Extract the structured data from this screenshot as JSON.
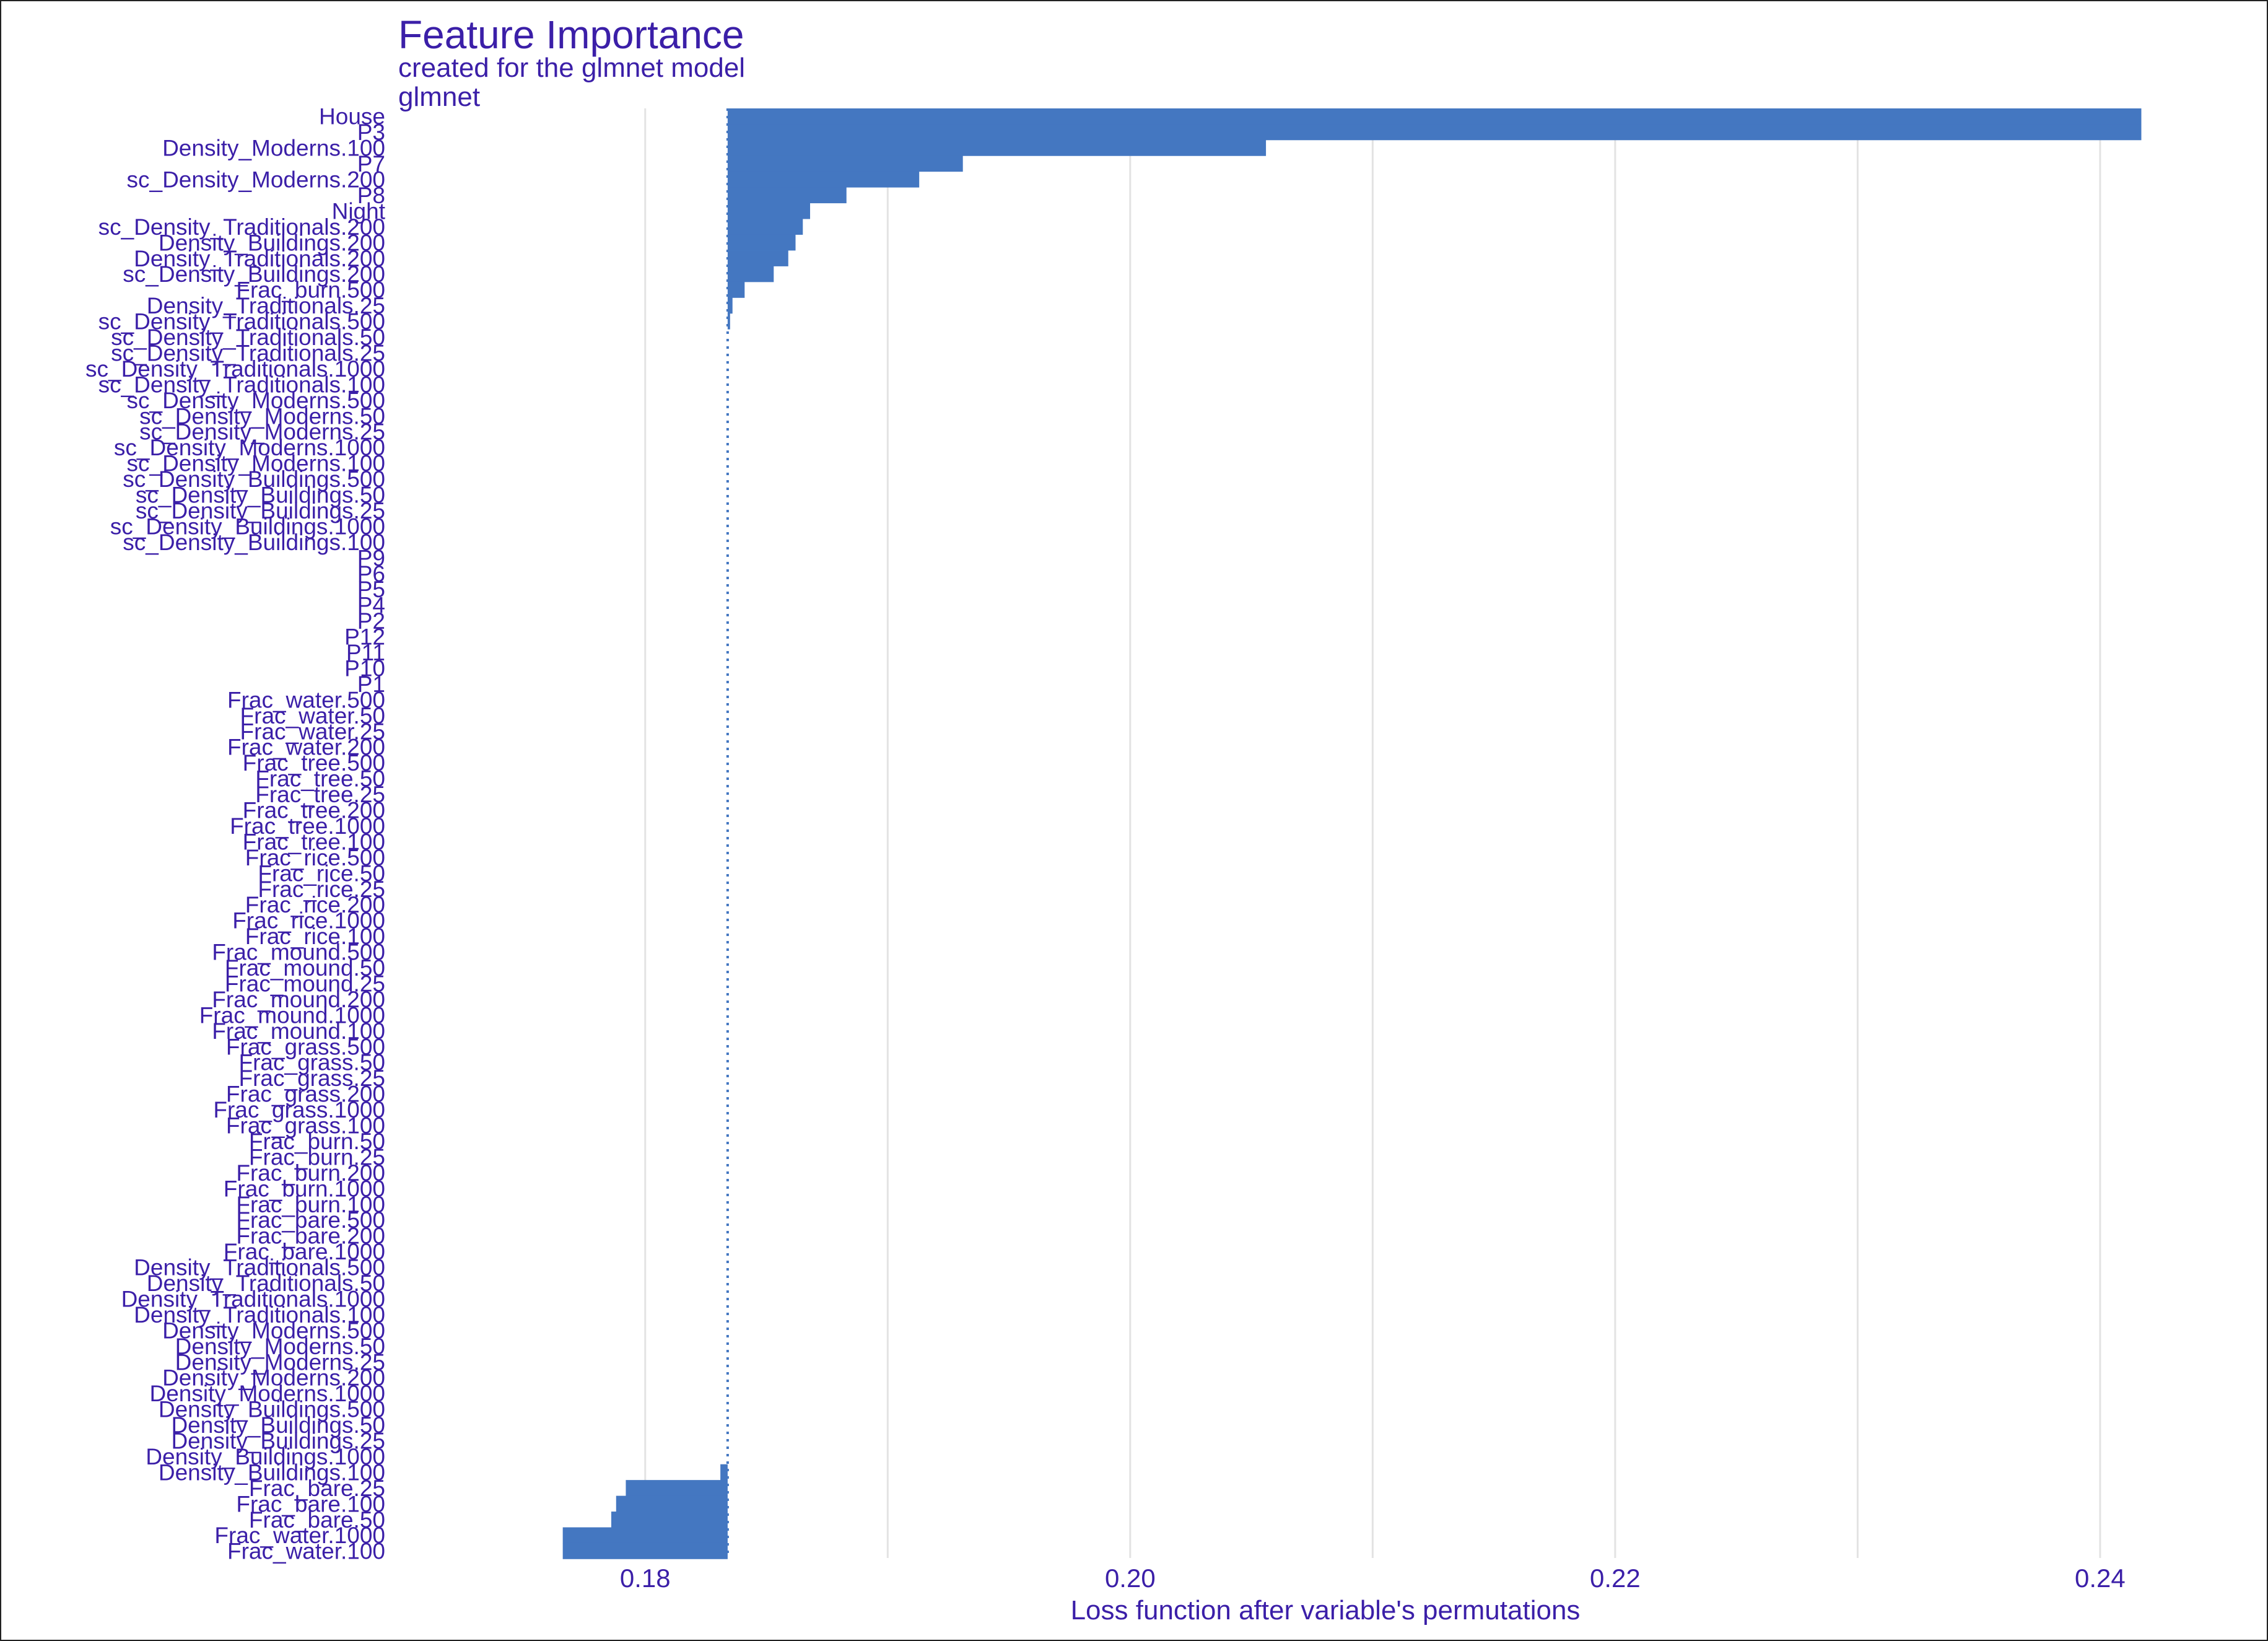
{
  "chart_data": {
    "type": "bar",
    "orientation": "horizontal",
    "title": "Feature Importance",
    "subtitle_lines": [
      "created for the glmnet model",
      "glmnet"
    ],
    "xlabel": "Loss function after variable's permutations",
    "ylabel": "",
    "xlim": [
      0.1703,
      0.2458
    ],
    "xticks": [
      0.18,
      0.2,
      0.22,
      0.24
    ],
    "xtick_labels": [
      "0.18",
      "0.20",
      "0.22",
      "0.24"
    ],
    "baseline": 0.1834,
    "grid": "vertical",
    "bar_color": "#4477c1",
    "baseline_color": "#4477c1",
    "text_color": "#3b1fa8",
    "categories": [
      "House",
      "P3",
      "Density_Moderns.100",
      "P7",
      "sc_Density_Moderns.200",
      "P8",
      "Night",
      "sc_Density_Traditionals.200",
      "Density_Buildings.200",
      "Density_Traditionals.200",
      "sc_Density_Buildings.200",
      "Frac_burn.500",
      "Density_Traditionals.25",
      "sc_Density_Traditionals.500",
      "sc_Density_Traditionals.50",
      "sc_Density_Traditionals.25",
      "sc_Density_Traditionals.1000",
      "sc_Density_Traditionals.100",
      "sc_Density_Moderns.500",
      "sc_Density_Moderns.50",
      "sc_Density_Moderns.25",
      "sc_Density_Moderns.1000",
      "sc_Density_Moderns.100",
      "sc_Density_Buildings.500",
      "sc_Density_Buildings.50",
      "sc_Density_Buildings.25",
      "sc_Density_Buildings.1000",
      "sc_Density_Buildings.100",
      "P9",
      "P6",
      "P5",
      "P4",
      "P2",
      "P12",
      "P11",
      "P10",
      "P1",
      "Frac_water.500",
      "Frac_water.50",
      "Frac_water.25",
      "Frac_water.200",
      "Frac_tree.500",
      "Frac_tree.50",
      "Frac_tree.25",
      "Frac_tree.200",
      "Frac_tree.1000",
      "Frac_tree.100",
      "Frac_rice.500",
      "Frac_rice.50",
      "Frac_rice.25",
      "Frac_rice.200",
      "Frac_rice.1000",
      "Frac_rice.100",
      "Frac_mound.500",
      "Frac_mound.50",
      "Frac_mound.25",
      "Frac_mound.200",
      "Frac_mound.1000",
      "Frac_mound.100",
      "Frac_grass.500",
      "Frac_grass.50",
      "Frac_grass.25",
      "Frac_grass.200",
      "Frac_grass.1000",
      "Frac_grass.100",
      "Frac_burn.50",
      "Frac_burn.25",
      "Frac_burn.200",
      "Frac_burn.1000",
      "Frac_burn.100",
      "Frac_bare.500",
      "Frac_bare.200",
      "Frac_bare.1000",
      "Density_Traditionals.500",
      "Density_Traditionals.50",
      "Density_Traditionals.1000",
      "Density_Traditionals.100",
      "Density_Moderns.500",
      "Density_Moderns.50",
      "Density_Moderns.25",
      "Density_Moderns.200",
      "Density_Moderns.1000",
      "Density_Buildings.500",
      "Density_Buildings.50",
      "Density_Buildings.25",
      "Density_Buildings.1000",
      "Density_Buildings.100",
      "Frac_bare.25",
      "Frac_bare.100",
      "Frac_bare.50",
      "Frac_water.1000",
      "Frac_water.100"
    ],
    "values": [
      0.2417,
      0.2417,
      0.2056,
      0.1931,
      0.1913,
      0.1883,
      0.1868,
      0.1865,
      0.1862,
      0.1859,
      0.1853,
      0.1841,
      0.1836,
      0.1835,
      0.1834,
      0.1834,
      0.1834,
      0.1834,
      0.1834,
      0.1834,
      0.1834,
      0.1834,
      0.1834,
      0.1834,
      0.1834,
      0.1834,
      0.1834,
      0.1834,
      0.1834,
      0.1834,
      0.1834,
      0.1834,
      0.1834,
      0.1834,
      0.1834,
      0.1834,
      0.1834,
      0.1834,
      0.1834,
      0.1834,
      0.1834,
      0.1834,
      0.1834,
      0.1834,
      0.1834,
      0.1834,
      0.1834,
      0.1834,
      0.1834,
      0.1834,
      0.1834,
      0.1834,
      0.1834,
      0.1834,
      0.1834,
      0.1834,
      0.1834,
      0.1834,
      0.1834,
      0.1834,
      0.1834,
      0.1834,
      0.1834,
      0.1834,
      0.1834,
      0.1834,
      0.1834,
      0.1834,
      0.1834,
      0.1834,
      0.1834,
      0.1834,
      0.1834,
      0.1834,
      0.1834,
      0.1834,
      0.1834,
      0.1834,
      0.1834,
      0.1834,
      0.1834,
      0.1834,
      0.1834,
      0.1834,
      0.1834,
      0.1834,
      0.1831,
      0.1792,
      0.1788,
      0.1786,
      0.1766,
      0.1766
    ]
  }
}
